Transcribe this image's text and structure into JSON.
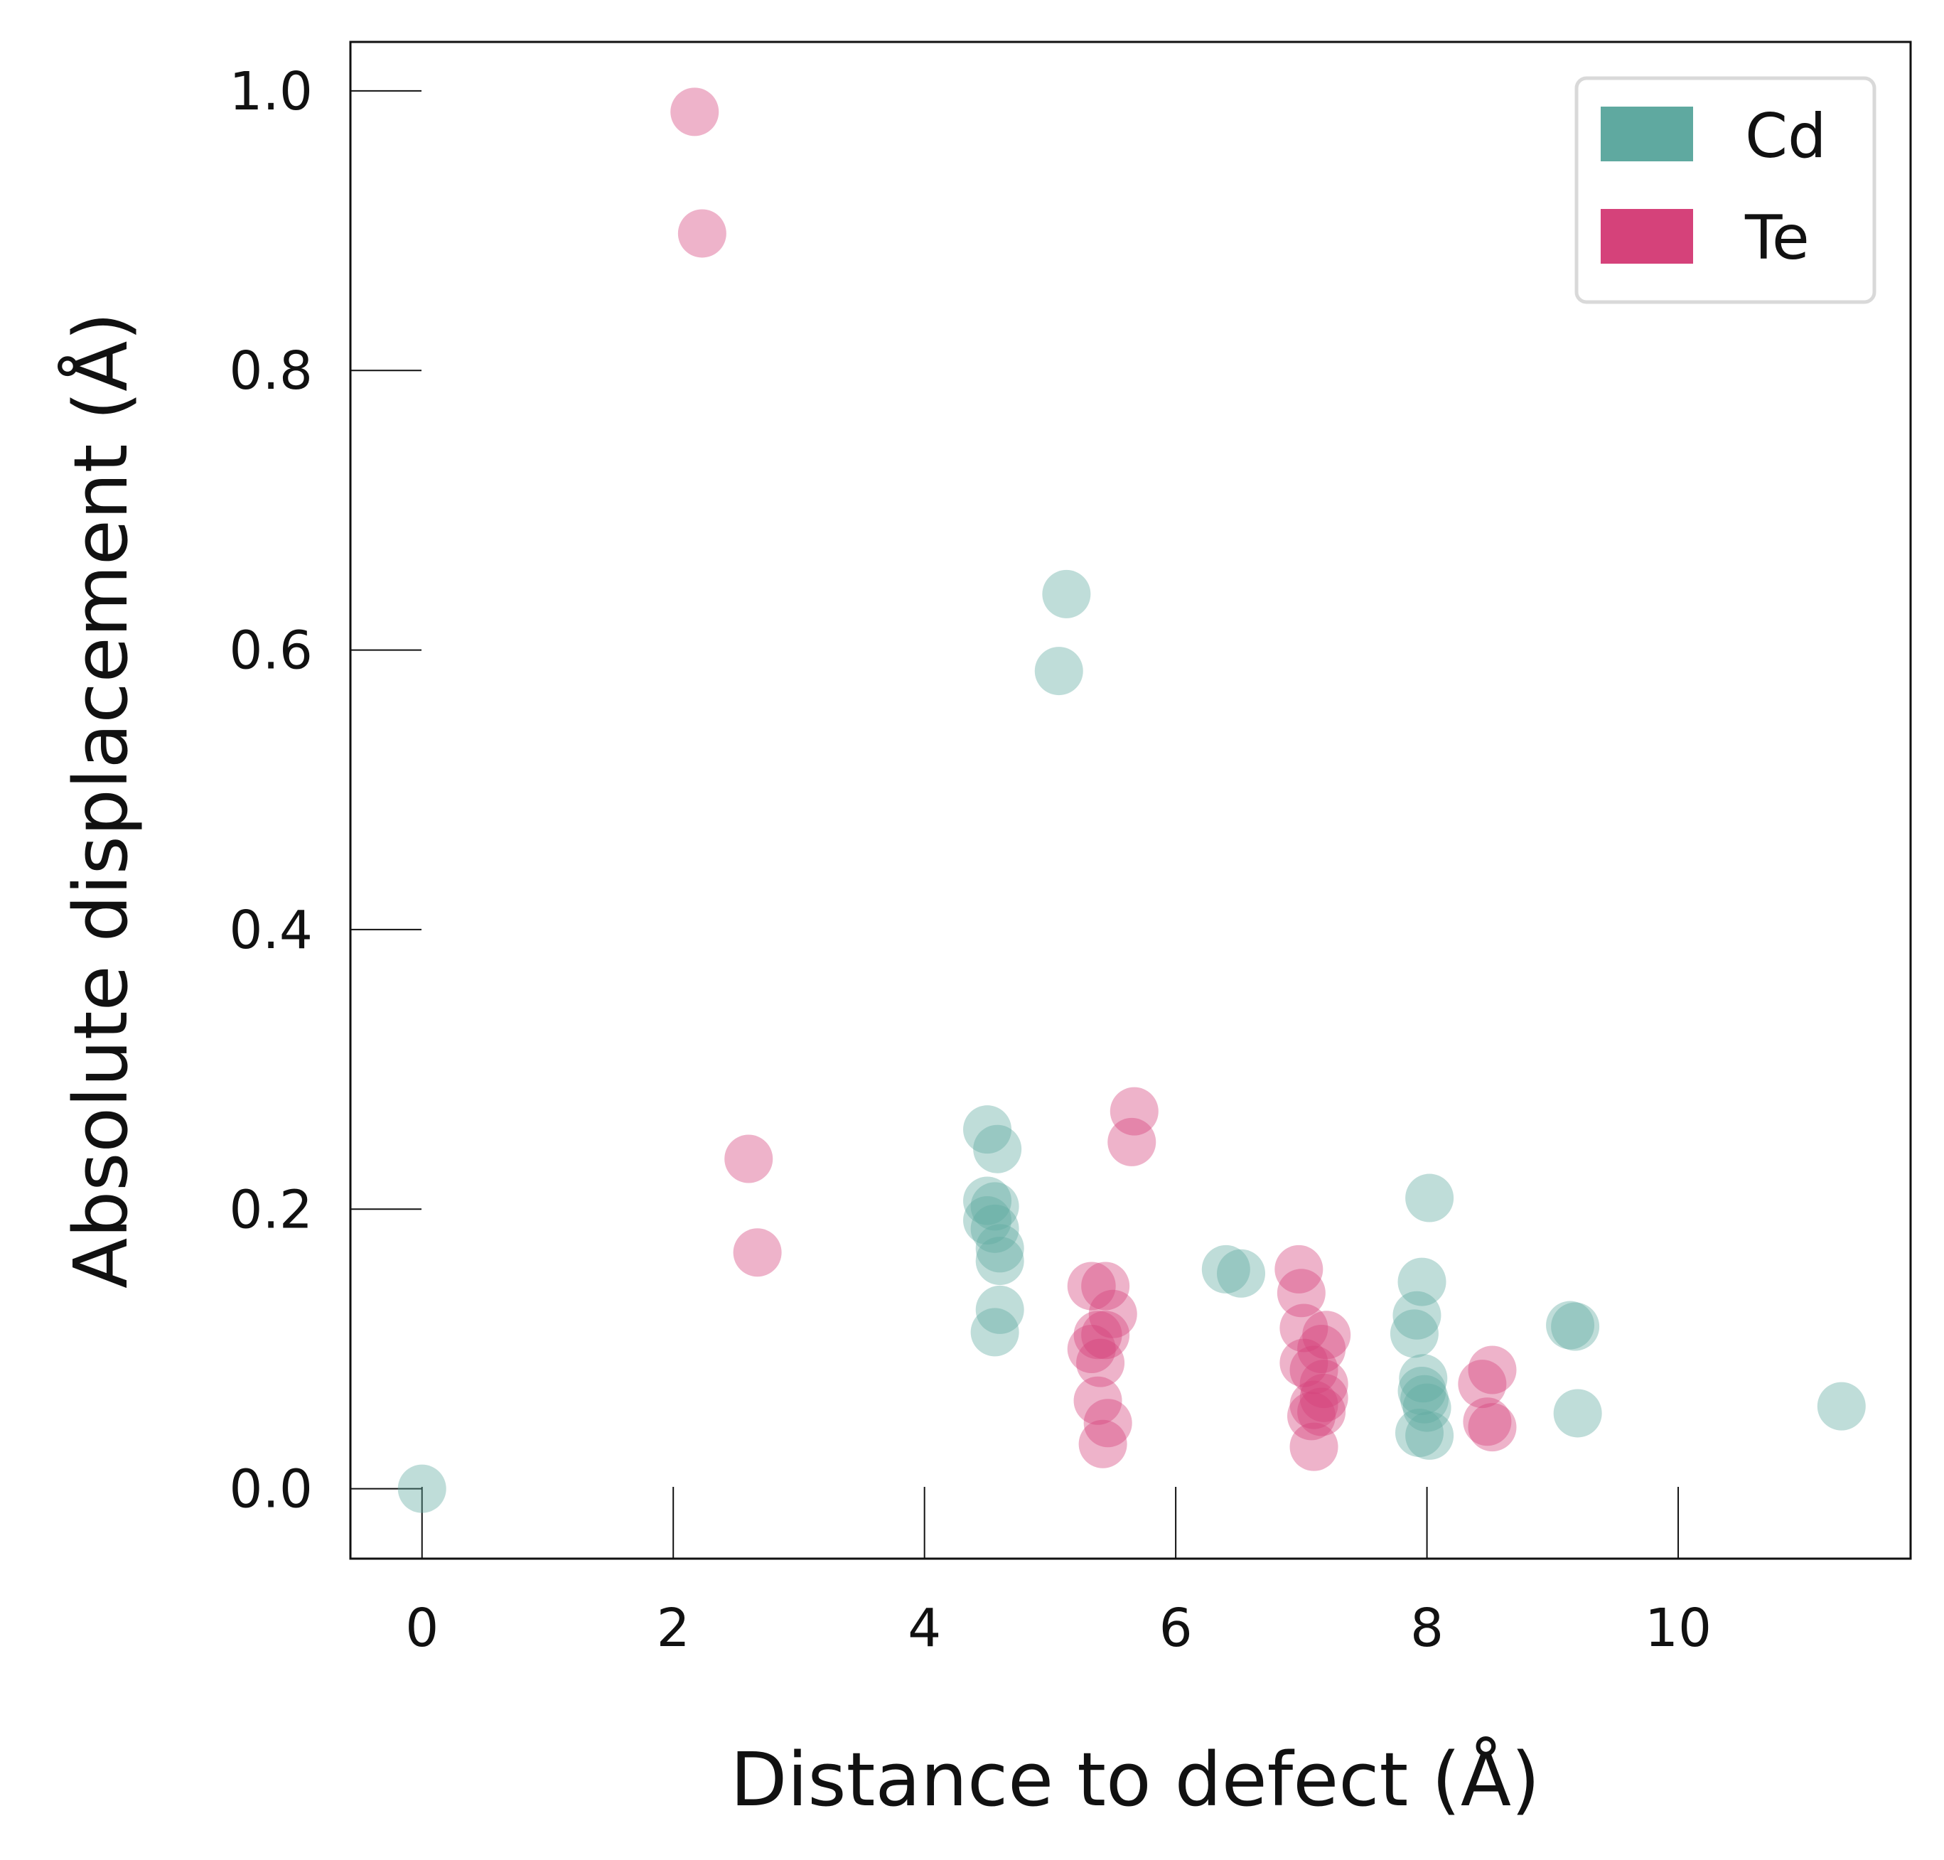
{
  "chart_data": {
    "type": "scatter",
    "title": "",
    "xlabel": "Distance to defect (Å)",
    "ylabel": "Absolute displacement (Å)",
    "xlim": [
      -0.57,
      11.85
    ],
    "ylim": [
      -0.05,
      1.035
    ],
    "xticks": [
      0,
      2,
      4,
      6,
      8,
      10
    ],
    "xtick_labels": [
      "0",
      "2",
      "4",
      "6",
      "8",
      "10"
    ],
    "yticks": [
      0.0,
      0.2,
      0.4,
      0.6,
      0.8,
      1.0
    ],
    "ytick_labels": [
      "0.0",
      "0.2",
      "0.4",
      "0.6",
      "0.8",
      "1.0"
    ],
    "grid": false,
    "legend_position": "top-right",
    "series": [
      {
        "name": "Cd",
        "color": "#5fa9a0",
        "points": [
          [
            0.0,
            0.0
          ],
          [
            4.5,
            0.257
          ],
          [
            4.58,
            0.243
          ],
          [
            4.5,
            0.206
          ],
          [
            4.56,
            0.202
          ],
          [
            4.5,
            0.192
          ],
          [
            4.56,
            0.186
          ],
          [
            4.6,
            0.172
          ],
          [
            4.6,
            0.163
          ],
          [
            4.6,
            0.128
          ],
          [
            4.56,
            0.112
          ],
          [
            5.13,
            0.64
          ],
          [
            5.07,
            0.585
          ],
          [
            6.4,
            0.157
          ],
          [
            6.52,
            0.154
          ],
          [
            8.02,
            0.208
          ],
          [
            7.96,
            0.148
          ],
          [
            7.92,
            0.124
          ],
          [
            7.9,
            0.111
          ],
          [
            7.97,
            0.079
          ],
          [
            7.96,
            0.07
          ],
          [
            7.98,
            0.064
          ],
          [
            8.0,
            0.058
          ],
          [
            7.94,
            0.04
          ],
          [
            8.02,
            0.038
          ],
          [
            9.14,
            0.117
          ],
          [
            9.18,
            0.116
          ],
          [
            9.2,
            0.054
          ],
          [
            11.3,
            0.059
          ]
        ]
      },
      {
        "name": "Te",
        "color": "#d5427a",
        "points": [
          [
            2.17,
            0.985
          ],
          [
            2.23,
            0.898
          ],
          [
            2.6,
            0.236
          ],
          [
            2.67,
            0.169
          ],
          [
            5.67,
            0.27
          ],
          [
            5.65,
            0.248
          ],
          [
            5.33,
            0.145
          ],
          [
            5.44,
            0.145
          ],
          [
            5.5,
            0.125
          ],
          [
            5.38,
            0.11
          ],
          [
            5.44,
            0.11
          ],
          [
            5.33,
            0.1
          ],
          [
            5.4,
            0.09
          ],
          [
            5.38,
            0.063
          ],
          [
            5.46,
            0.047
          ],
          [
            5.42,
            0.032
          ],
          [
            6.98,
            0.157
          ],
          [
            7.0,
            0.14
          ],
          [
            7.02,
            0.115
          ],
          [
            7.2,
            0.11
          ],
          [
            7.16,
            0.1
          ],
          [
            7.02,
            0.09
          ],
          [
            7.1,
            0.085
          ],
          [
            7.18,
            0.075
          ],
          [
            7.18,
            0.065
          ],
          [
            7.1,
            0.06
          ],
          [
            7.16,
            0.055
          ],
          [
            7.08,
            0.052
          ],
          [
            7.1,
            0.03
          ],
          [
            8.52,
            0.085
          ],
          [
            8.44,
            0.075
          ],
          [
            8.48,
            0.048
          ],
          [
            8.52,
            0.044
          ]
        ]
      }
    ]
  }
}
